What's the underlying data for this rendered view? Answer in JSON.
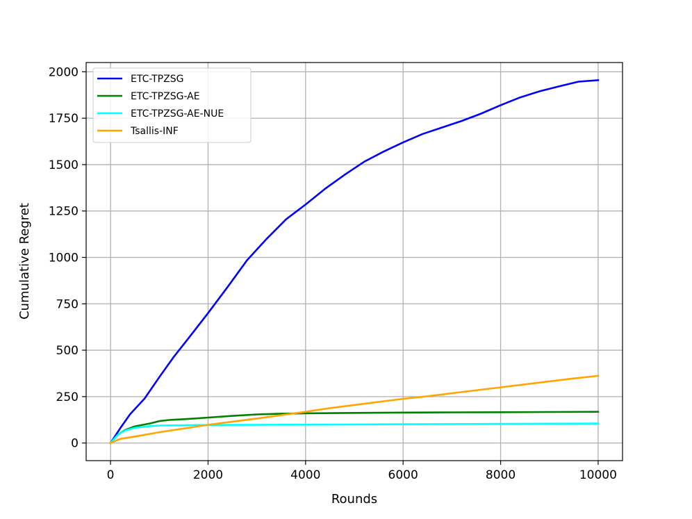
{
  "chart_data": {
    "type": "line",
    "title": "",
    "xlabel": "Rounds",
    "ylabel": "Cumulative Regret",
    "xlim": [
      -500,
      10500
    ],
    "ylim": [
      -95,
      2050
    ],
    "xticks": [
      0,
      2000,
      4000,
      6000,
      8000,
      10000
    ],
    "xtick_labels": [
      "0",
      "2000",
      "4000",
      "6000",
      "8000",
      "10000"
    ],
    "yticks": [
      0,
      250,
      500,
      750,
      1000,
      1250,
      1500,
      1750,
      2000
    ],
    "ytick_labels": [
      "0",
      "250",
      "500",
      "750",
      "1000",
      "1250",
      "1500",
      "1750",
      "2000"
    ],
    "grid": true,
    "legend_position": "upper-left",
    "series": [
      {
        "name": "ETC-TPZSG",
        "color": "#0000ff",
        "x": [
          0,
          200,
          400,
          700,
          1000,
          1300,
          1600,
          2000,
          2400,
          2800,
          3200,
          3600,
          4000,
          4400,
          4800,
          5200,
          5600,
          6000,
          6400,
          6800,
          7200,
          7600,
          8000,
          8400,
          8800,
          9200,
          9600,
          10000
        ],
        "y": [
          0,
          80,
          155,
          240,
          355,
          465,
          565,
          700,
          840,
          985,
          1100,
          1205,
          1285,
          1370,
          1445,
          1515,
          1570,
          1620,
          1665,
          1700,
          1735,
          1775,
          1820,
          1862,
          1895,
          1922,
          1947,
          1955
        ]
      },
      {
        "name": "ETC-TPZSG-AE",
        "color": "#008000",
        "x": [
          0,
          150,
          300,
          500,
          800,
          1000,
          1200,
          1600,
          2000,
          2500,
          3000,
          3500,
          4000,
          5000,
          6000,
          7000,
          8000,
          9000,
          10000
        ],
        "y": [
          0,
          45,
          70,
          90,
          105,
          118,
          124,
          130,
          137,
          146,
          154,
          158,
          160,
          162,
          164,
          165,
          166,
          167,
          168
        ]
      },
      {
        "name": "ETC-TPZSG-AE-NUE",
        "color": "#00ffff",
        "x": [
          0,
          150,
          300,
          500,
          800,
          1000,
          1500,
          2000,
          3000,
          4000,
          5000,
          6000,
          7000,
          8000,
          9000,
          10000
        ],
        "y": [
          0,
          45,
          68,
          82,
          91,
          94,
          96,
          97,
          98,
          99,
          100,
          101,
          102,
          103,
          104,
          105
        ]
      },
      {
        "name": "Tsallis-INF",
        "color": "#ffa500",
        "x": [
          0,
          200,
          500,
          1000,
          1500,
          2000,
          3000,
          4000,
          4500,
          5000,
          6000,
          6500,
          7000,
          8000,
          9000,
          9500,
          10000
        ],
        "y": [
          0,
          22,
          35,
          58,
          78,
          98,
          132,
          168,
          188,
          205,
          238,
          252,
          268,
          300,
          332,
          348,
          362
        ]
      }
    ]
  }
}
